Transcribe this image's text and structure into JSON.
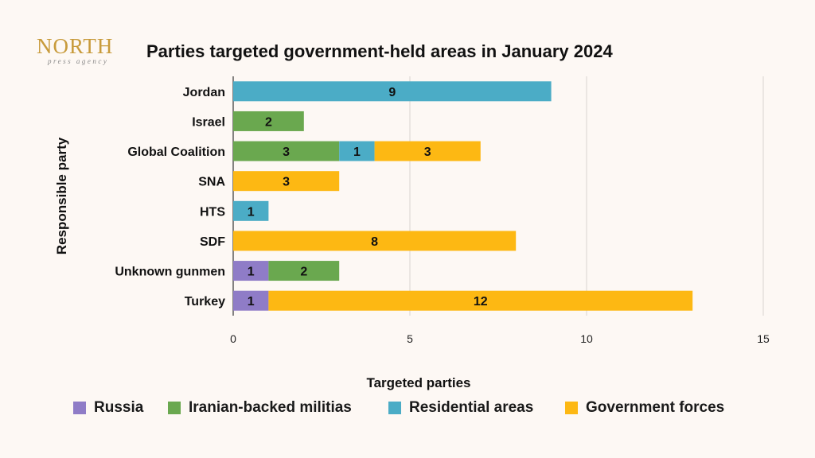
{
  "logo": {
    "word": "NORTH",
    "sub": "press agency"
  },
  "colors": {
    "Russia": "#8f7cc7",
    "Iranian-backed militias": "#6aa84f",
    "Residential areas": "#4bacc6",
    "Government forces": "#fdb813",
    "grid": "#d9d4cf",
    "axis": "#333333"
  },
  "chart_data": {
    "type": "bar",
    "orientation": "horizontal",
    "stacked": true,
    "title": "Parties targeted government-held areas in January 2024",
    "xlabel": "Targeted parties",
    "ylabel": "Responsible party",
    "xlim": [
      0,
      15
    ],
    "xticks": [
      "0",
      "5",
      "10",
      "15"
    ],
    "grid": true,
    "legend_position": "bottom",
    "categories": [
      "Jordan",
      "Israel",
      "Global Coalition",
      "SNA",
      "HTS",
      "SDF",
      "Unknown gunmen",
      "Turkey"
    ],
    "series": [
      {
        "name": "Russia",
        "values": [
          0,
          0,
          0,
          0,
          0,
          0,
          1,
          1
        ]
      },
      {
        "name": "Iranian-backed militias",
        "values": [
          0,
          2,
          3,
          0,
          0,
          0,
          2,
          0
        ]
      },
      {
        "name": "Residential areas",
        "values": [
          9,
          0,
          1,
          0,
          1,
          0,
          0,
          0
        ]
      },
      {
        "name": "Government forces",
        "values": [
          0,
          0,
          3,
          3,
          0,
          8,
          0,
          12
        ]
      }
    ]
  }
}
